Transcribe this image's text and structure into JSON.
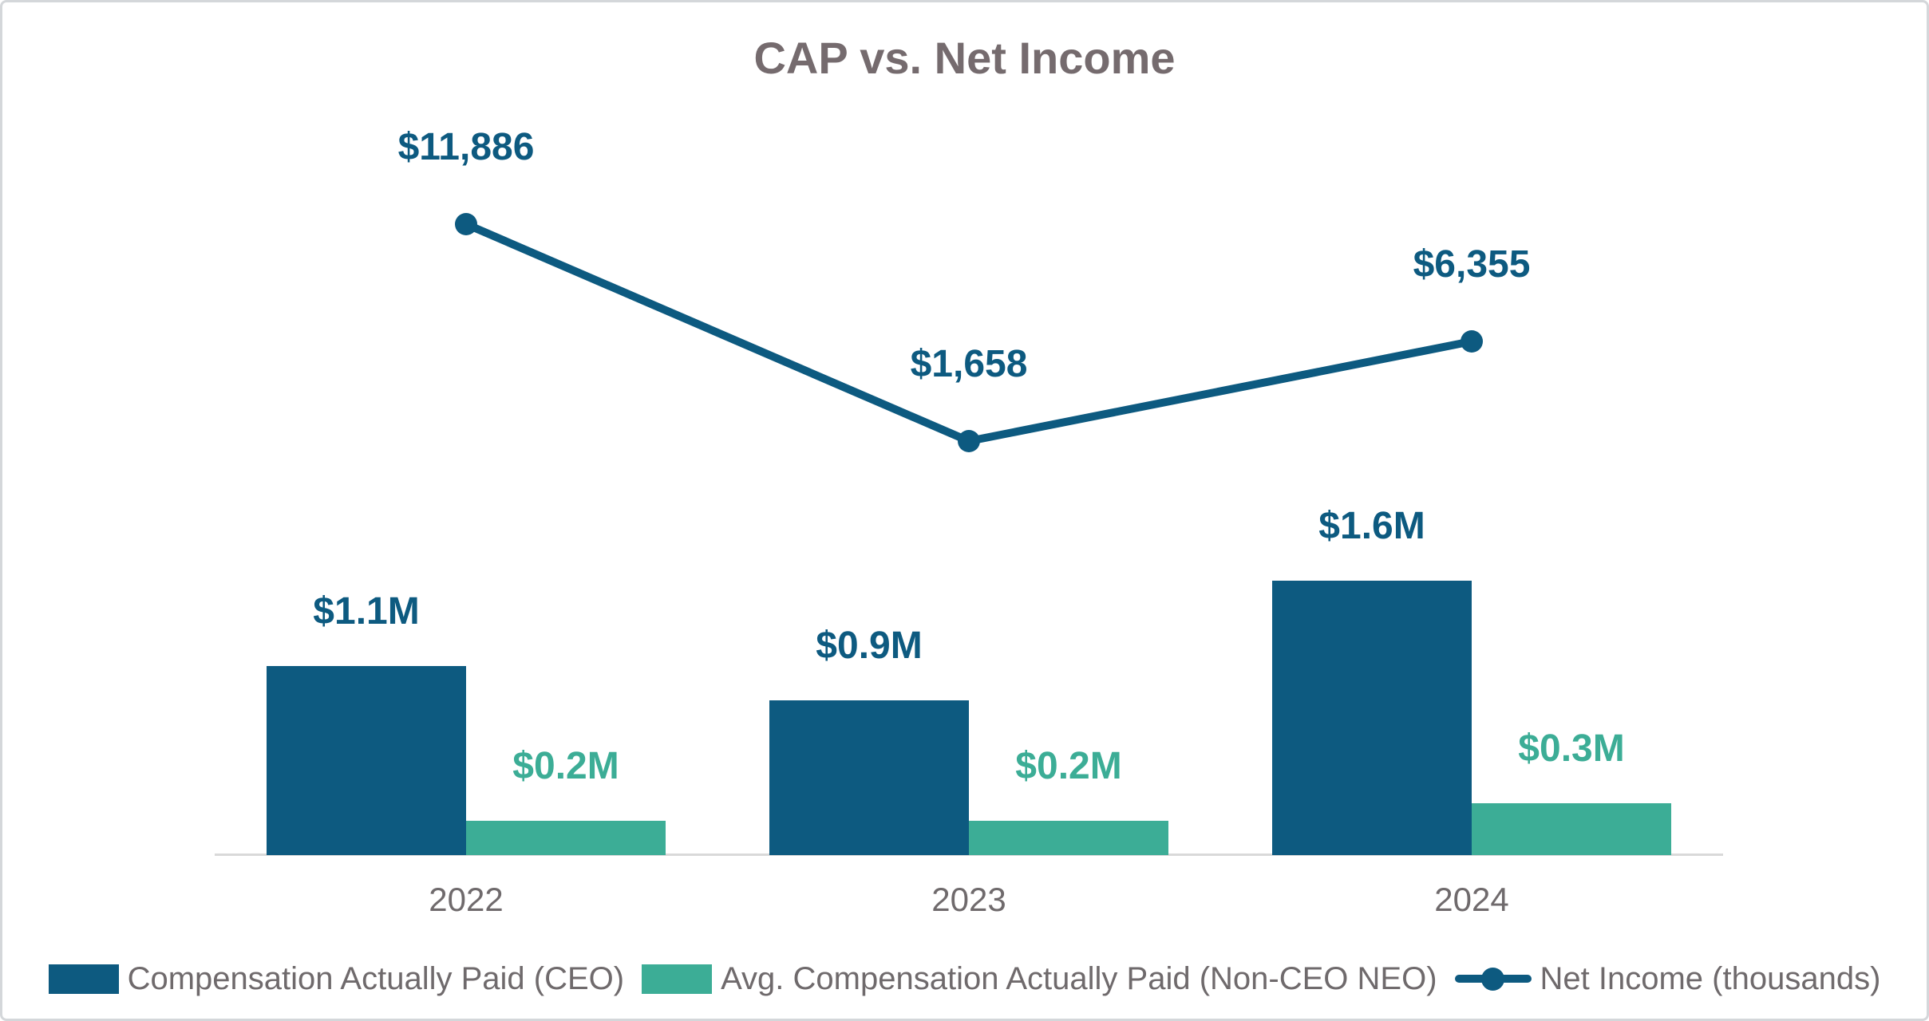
{
  "title": "CAP vs. Net Income",
  "colors": {
    "ceo_bar": "#0d5a80",
    "neo_bar": "#3cad96",
    "net_income_line": "#0d5a80",
    "title_text": "#756b6e",
    "axis_text": "#6f6a6c",
    "legend_text": "#6f6a6c",
    "axis_line": "#d9d9d9",
    "background": "#ffffff"
  },
  "chart_data": {
    "type": "combo-bar-line",
    "title": "CAP vs. Net Income",
    "categories": [
      "2022",
      "2023",
      "2024"
    ],
    "series": [
      {
        "name": "Compensation Actually Paid (CEO)",
        "chart_type": "bar",
        "unit": "millions USD",
        "values": [
          1.1,
          0.9,
          1.6
        ],
        "data_labels": [
          "$1.1M",
          "$0.9M",
          "$1.6M"
        ],
        "color_key": "ceo_bar"
      },
      {
        "name": "Avg. Compensation Actually Paid (Non-CEO NEO)",
        "chart_type": "bar",
        "unit": "millions USD",
        "values": [
          0.2,
          0.2,
          0.3
        ],
        "data_labels": [
          "$0.2M",
          "$0.2M",
          "$0.3M"
        ],
        "color_key": "neo_bar"
      },
      {
        "name": "Net Income (thousands)",
        "chart_type": "line",
        "unit": "thousands USD",
        "values": [
          11886,
          1658,
          6355
        ],
        "data_labels": [
          "$11,886",
          "$1,658",
          "$6,355"
        ],
        "color_key": "net_income_line"
      }
    ],
    "legend_position": "bottom",
    "gridlines": false,
    "y_axes_visible": false
  }
}
